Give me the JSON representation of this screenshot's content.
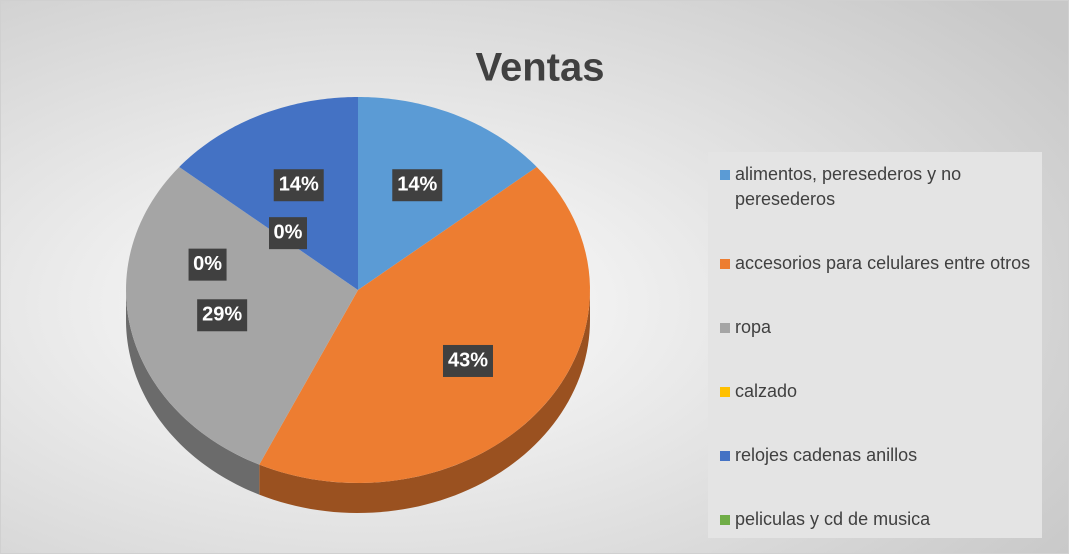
{
  "chart_data": {
    "type": "pie",
    "title": "Ventas",
    "categories": [
      "alimentos, peresederos y no peresederos",
      "accesorios para celulares entre otros",
      "ropa",
      "calzado",
      "relojes cadenas anillos",
      "peliculas y cd de musica"
    ],
    "values": [
      14,
      43,
      29,
      0,
      14,
      0
    ],
    "value_labels": [
      "14%",
      "43%",
      "29%",
      "0%",
      "14%",
      "0%"
    ],
    "colors": [
      "#5b9bd5",
      "#ed7d31",
      "#a5a5a5",
      "#ffc000",
      "#4472c4",
      "#70ad47"
    ],
    "legend": "right"
  }
}
